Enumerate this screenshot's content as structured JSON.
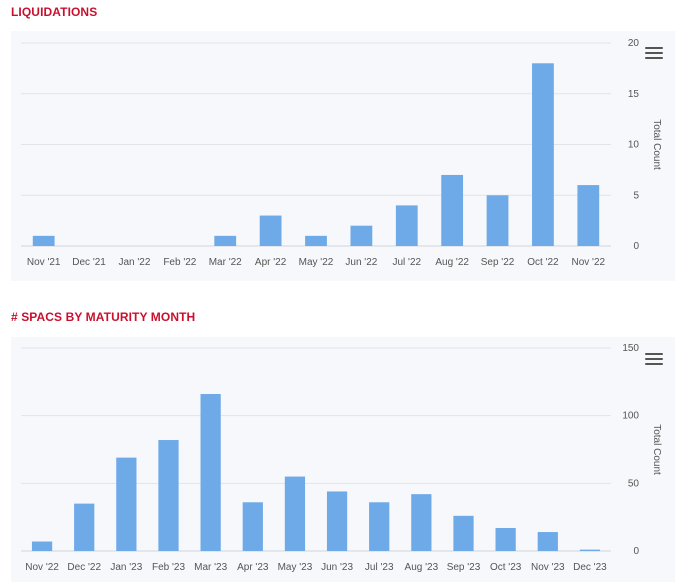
{
  "colors": {
    "bar": "#6ea9e8",
    "title": "#c8102e",
    "grid": "#e2e4e8",
    "panel": "#f7f8fb"
  },
  "chart_data": [
    {
      "type": "bar",
      "title": "LIQUIDATIONS",
      "ylabel": "Total Count",
      "xlabel": "",
      "ylim": [
        0,
        20
      ],
      "yticks": [
        0,
        5,
        10,
        15,
        20
      ],
      "grid": true,
      "legend": "none",
      "menu_icon": "hamburger-menu-icon",
      "categories": [
        "Nov '21",
        "Dec '21",
        "Jan '22",
        "Feb '22",
        "Mar '22",
        "Apr '22",
        "May '22",
        "Jun '22",
        "Jul '22",
        "Aug '22",
        "Sep '22",
        "Oct '22",
        "Nov '22"
      ],
      "values": [
        1,
        0,
        0,
        0,
        1,
        3,
        1,
        2,
        4,
        7,
        5,
        18,
        6
      ]
    },
    {
      "type": "bar",
      "title": "# SPACS BY MATURITY MONTH",
      "ylabel": "Total Count",
      "xlabel": "",
      "ylim": [
        0,
        150
      ],
      "yticks": [
        0,
        50,
        100,
        150
      ],
      "grid": true,
      "legend": "none",
      "menu_icon": "hamburger-menu-icon",
      "categories": [
        "Nov '22",
        "Dec '22",
        "Jan '23",
        "Feb '23",
        "Mar '23",
        "Apr '23",
        "May '23",
        "Jun '23",
        "Jul '23",
        "Aug '23",
        "Sep '23",
        "Oct '23",
        "Nov '23",
        "Dec '23"
      ],
      "values": [
        7,
        35,
        69,
        82,
        116,
        36,
        55,
        44,
        36,
        42,
        26,
        17,
        14,
        1
      ]
    }
  ]
}
